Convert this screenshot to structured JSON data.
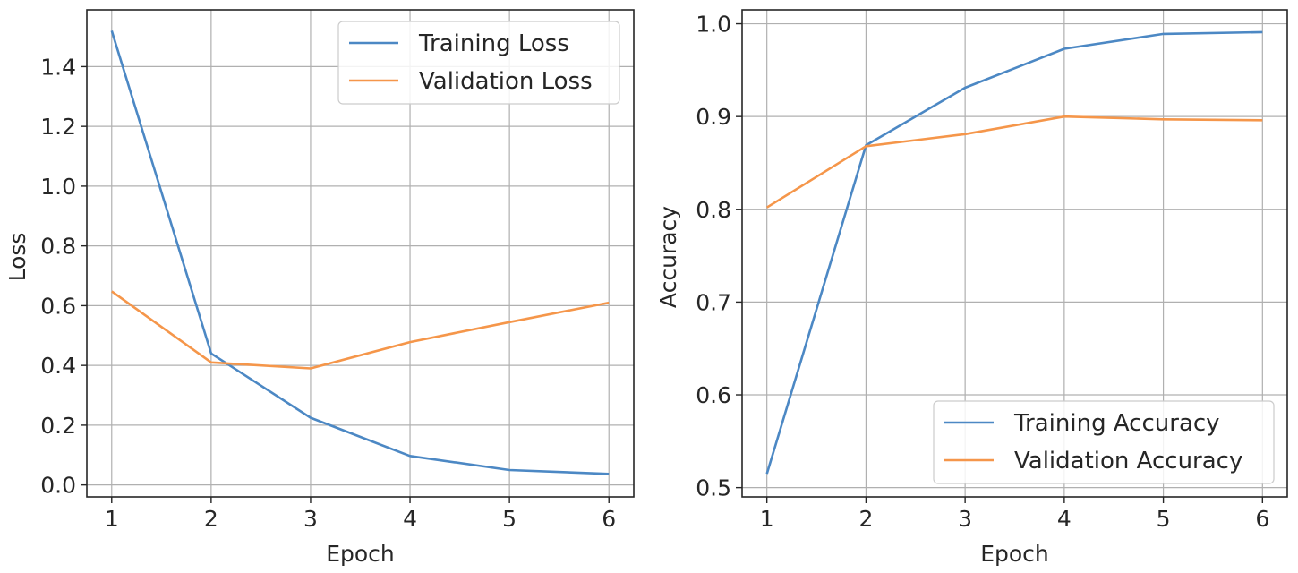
{
  "chart_data": [
    {
      "type": "line",
      "title": "",
      "xlabel": "Epoch",
      "ylabel": "Loss",
      "x": [
        1,
        2,
        3,
        4,
        5,
        6
      ],
      "xticks": [
        "1",
        "2",
        "3",
        "4",
        "5",
        "6"
      ],
      "yticks": [
        "0.0",
        "0.2",
        "0.4",
        "0.6",
        "0.8",
        "1.0",
        "1.2",
        "1.4"
      ],
      "xlim": [
        0.75,
        6.25
      ],
      "ylim": [
        -0.04,
        1.59
      ],
      "grid": true,
      "legend_position": "top-right",
      "series": [
        {
          "name": "Training Loss",
          "color": "#4c88c4",
          "values": [
            1.52,
            0.44,
            0.225,
            0.097,
            0.05,
            0.037
          ]
        },
        {
          "name": "Validation Loss",
          "color": "#f5964a",
          "values": [
            0.648,
            0.41,
            0.39,
            0.478,
            0.545,
            0.61
          ]
        }
      ]
    },
    {
      "type": "line",
      "title": "",
      "xlabel": "Epoch",
      "ylabel": "Accuracy",
      "x": [
        1,
        2,
        3,
        4,
        5,
        6
      ],
      "xticks": [
        "1",
        "2",
        "3",
        "4",
        "5",
        "6"
      ],
      "yticks": [
        "0.5",
        "0.6",
        "0.7",
        "0.8",
        "0.9",
        "1.0"
      ],
      "xlim": [
        0.75,
        6.25
      ],
      "ylim": [
        0.49,
        1.015
      ],
      "grid": true,
      "legend_position": "bottom-right",
      "series": [
        {
          "name": "Training Accuracy",
          "color": "#4c88c4",
          "values": [
            0.515,
            0.869,
            0.931,
            0.973,
            0.989,
            0.991
          ]
        },
        {
          "name": "Validation Accuracy",
          "color": "#f5964a",
          "values": [
            0.802,
            0.868,
            0.881,
            0.9,
            0.897,
            0.896
          ]
        }
      ]
    }
  ]
}
